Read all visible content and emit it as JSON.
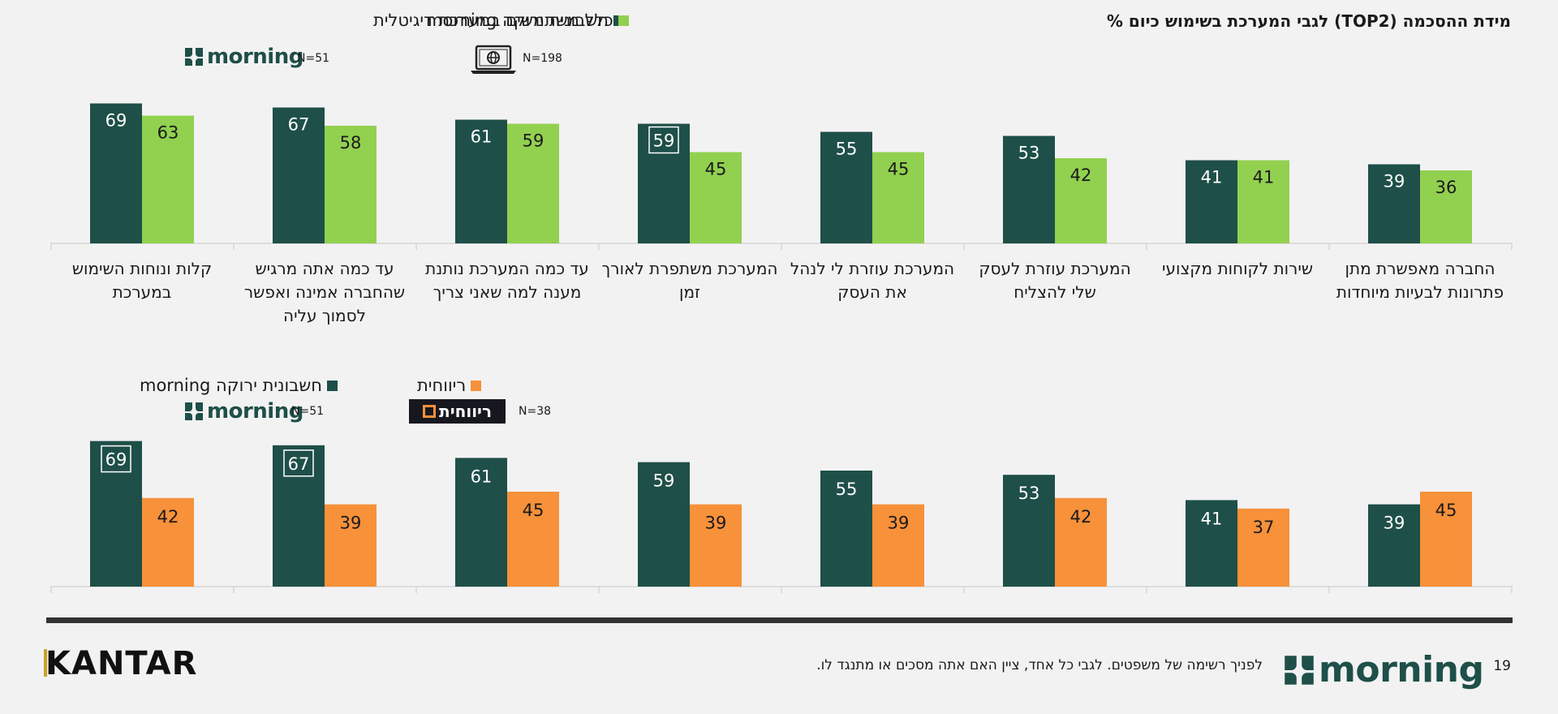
{
  "page": {
    "title": "מידת ההסכמה (TOP2) לגבי המערכת בשימוש כיום %",
    "footnote": "לפניך רשימה של משפטים. לגבי כל אחד, ציין האם אתה מסכים או מתנגד לו.",
    "page_number": "19",
    "kantar_logo_text": "KANTAR",
    "morning_logo_text": "morning",
    "rivhit_logo_text": "ריווחית"
  },
  "legend_top": {
    "series1": "חשבונית ירוקה morning",
    "series2": "כלל משתמשים במערכת דיגיטלית",
    "n1": "N=51",
    "n2": "N=198"
  },
  "legend_bottom": {
    "series1": "חשבונית ירוקה morning",
    "series2": "ריווחית",
    "n1": "N=51",
    "n2": "N=38"
  },
  "colors": {
    "morning": "#1e4f48",
    "digital": "#92d050",
    "rivhit": "#f7913a"
  },
  "categories": [
    "קלות ונוחות השימוש במערכת",
    "עד כמה אתה מרגיש שהחברה אמינה ואפשר לסמוך עליה",
    "עד כמה המערכת נותנת מענה למה שאני צריך",
    "המערכת משתפרת לאורך זמן",
    "המערכת עוזרת לי לנהל את העסק",
    "המערכת עוזרת לעסק שלי להצליח",
    "שירות לקוחות מקצועי",
    "החברה מאפשרת מתן פתרונות לבעיות מיוחדות"
  ],
  "chart_data": [
    {
      "type": "bar",
      "categories": [
        "קלות ונוחות השימוש במערכת",
        "עד כמה אתה מרגיש שהחברה אמינה ואפשר לסמוך עליה",
        "עד כמה המערכת נותנת מענה למה שאני צריך",
        "המערכת משתפרת לאורך זמן",
        "המערכת עוזרת לי לנהל את העסק",
        "המערכת עוזרת לעסק שלי להצליח",
        "שירות לקוחות מקצועי",
        "החברה מאפשרת מתן פתרונות לבעיות מיוחדות"
      ],
      "series": [
        {
          "name": "חשבונית ירוקה morning",
          "values": [
            69,
            67,
            61,
            59,
            55,
            53,
            41,
            39
          ],
          "color": "#1e4f48"
        },
        {
          "name": "כלל משתמשים במערכת דיגיטלית",
          "values": [
            63,
            58,
            59,
            45,
            45,
            42,
            41,
            36
          ],
          "color": "#92d050"
        }
      ],
      "highlighted": [
        {
          "series": 0,
          "index": 3
        }
      ],
      "ylim": [
        0,
        80
      ],
      "grid": false
    },
    {
      "type": "bar",
      "categories": [
        "קלות ונוחות השימוש במערכת",
        "עד כמה אתה מרגיש שהחברה אמינה ואפשר לסמוך עליה",
        "עד כמה המערכת נותנת מענה למה שאני צריך",
        "המערכת משתפרת לאורך זמן",
        "המערכת עוזרת לי לנהל את העסק",
        "המערכת עוזרת לעסק שלי להצליח",
        "שירות לקוחות מקצועי",
        "החברה מאפשרת מתן פתרונות לבעיות מיוחדות"
      ],
      "series": [
        {
          "name": "חשבונית ירוקה morning",
          "values": [
            69,
            67,
            61,
            59,
            55,
            53,
            41,
            39
          ],
          "color": "#1e4f48"
        },
        {
          "name": "ריווחית",
          "values": [
            42,
            39,
            45,
            39,
            39,
            42,
            37,
            45
          ],
          "color": "#f7913a"
        }
      ],
      "highlighted": [
        {
          "series": 0,
          "index": 0
        },
        {
          "series": 0,
          "index": 1
        }
      ],
      "ylim": [
        0,
        80
      ],
      "grid": false
    }
  ]
}
